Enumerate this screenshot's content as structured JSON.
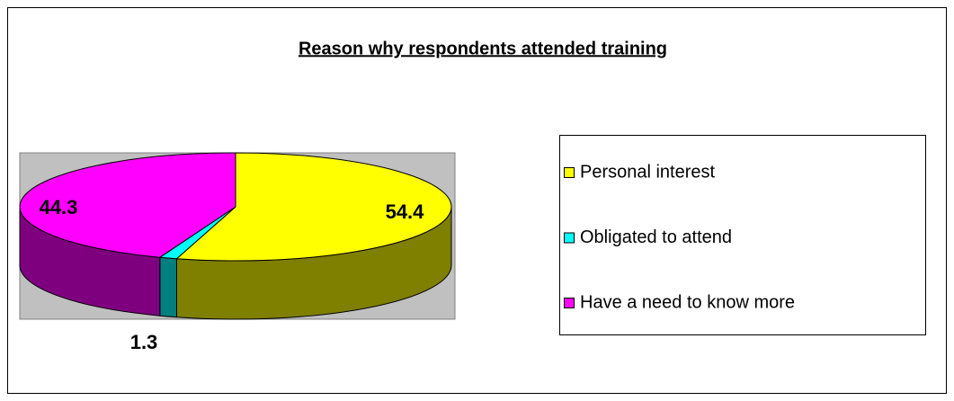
{
  "chart_data": {
    "type": "pie",
    "title": "Reason why respondents attended training",
    "categories": [
      "Personal interest",
      "Obligated to attend",
      "Have a need to know more"
    ],
    "values": [
      54.4,
      1.3,
      44.3
    ],
    "colors": [
      "#ffff00",
      "#00ffff",
      "#ff00ff"
    ],
    "legend": "right"
  }
}
